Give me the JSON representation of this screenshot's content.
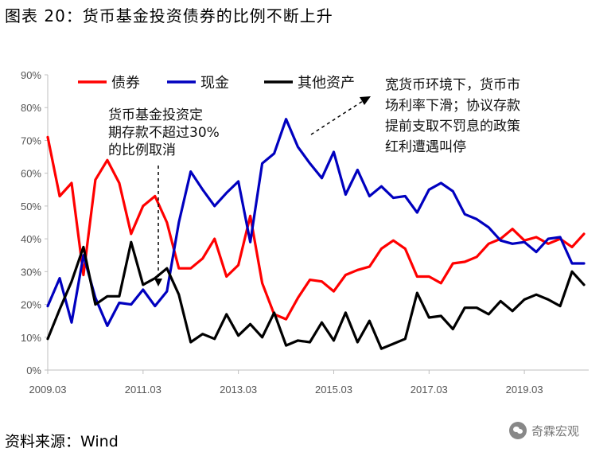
{
  "header": {
    "title": "图表 20：货币基金投资债券的比例不断上升"
  },
  "footer": {
    "source": "资料来源：Wind",
    "watermark": "奇霖宏观"
  },
  "chart_data": {
    "type": "line",
    "title": "",
    "xlabel": "",
    "ylabel": "",
    "ylim": [
      0,
      90
    ],
    "y_ticks": [
      "0%",
      "10%",
      "20%",
      "30%",
      "40%",
      "50%",
      "60%",
      "70%",
      "80%",
      "90%"
    ],
    "x_ticks": [
      "2009.03",
      "2011.03",
      "2013.03",
      "2015.03",
      "2017.03",
      "2019.03"
    ],
    "x_range": [
      2009.0,
      2020.35
    ],
    "x_tick_values": [
      2009.0,
      2011.0,
      2013.0,
      2015.0,
      2017.0,
      2019.0
    ],
    "grid": false,
    "legend_position": "top",
    "series": [
      {
        "name": "债券",
        "color": "#ff0000",
        "x": [
          2009.0,
          2009.25,
          2009.5,
          2009.75,
          2010.0,
          2010.25,
          2010.5,
          2010.75,
          2011.0,
          2011.25,
          2011.5,
          2011.75,
          2012.0,
          2012.25,
          2012.5,
          2012.75,
          2013.0,
          2013.25,
          2013.5,
          2013.75,
          2014.0,
          2014.25,
          2014.5,
          2014.75,
          2015.0,
          2015.25,
          2015.5,
          2015.75,
          2016.0,
          2016.25,
          2016.5,
          2016.75,
          2017.0,
          2017.25,
          2017.5,
          2017.75,
          2018.0,
          2018.25,
          2018.5,
          2018.75,
          2019.0,
          2019.25,
          2019.5,
          2019.75,
          2020.0,
          2020.25
        ],
        "values": [
          71,
          53,
          57,
          29,
          58,
          64,
          57,
          41.5,
          50,
          53,
          45,
          31,
          31,
          34,
          40,
          28.5,
          32,
          47,
          26.5,
          17,
          15.5,
          22,
          27.5,
          27,
          24,
          29,
          30.5,
          31.5,
          37,
          39.5,
          37,
          28.5,
          28.5,
          26.5,
          32.5,
          33,
          34.5,
          38.5,
          40,
          43,
          39.5,
          40.5,
          38.5,
          40,
          37.5,
          41.5
        ]
      },
      {
        "name": "现金",
        "color": "#0000bf",
        "x": [
          2009.0,
          2009.25,
          2009.5,
          2009.75,
          2010.0,
          2010.25,
          2010.5,
          2010.75,
          2011.0,
          2011.25,
          2011.5,
          2011.75,
          2012.0,
          2012.25,
          2012.5,
          2012.75,
          2013.0,
          2013.25,
          2013.5,
          2013.75,
          2014.0,
          2014.25,
          2014.5,
          2014.75,
          2015.0,
          2015.25,
          2015.5,
          2015.75,
          2016.0,
          2016.25,
          2016.5,
          2016.75,
          2017.0,
          2017.25,
          2017.5,
          2017.75,
          2018.0,
          2018.25,
          2018.5,
          2018.75,
          2019.0,
          2019.25,
          2019.5,
          2019.75,
          2020.0,
          2020.25
        ],
        "values": [
          19.5,
          28,
          14.5,
          35,
          22,
          13.5,
          20.5,
          20,
          24.5,
          19.5,
          24,
          45,
          60.5,
          55,
          50,
          54,
          57.5,
          39,
          63,
          66,
          76.5,
          68,
          63,
          58.5,
          66.5,
          53.5,
          61,
          53,
          56,
          52.5,
          53,
          48,
          55,
          57,
          54.5,
          47.5,
          46,
          43.5,
          39.5,
          38.5,
          39,
          36,
          40,
          40.5,
          32.5,
          32.5
        ]
      },
      {
        "name": "其他资产",
        "color": "#000000",
        "x": [
          2009.0,
          2009.25,
          2009.5,
          2009.75,
          2010.0,
          2010.25,
          2010.5,
          2010.75,
          2011.0,
          2011.25,
          2011.5,
          2011.75,
          2012.0,
          2012.25,
          2012.5,
          2012.75,
          2013.0,
          2013.25,
          2013.5,
          2013.75,
          2014.0,
          2014.25,
          2014.5,
          2014.75,
          2015.0,
          2015.25,
          2015.5,
          2015.75,
          2016.0,
          2016.25,
          2016.5,
          2016.75,
          2017.0,
          2017.25,
          2017.5,
          2017.75,
          2018.0,
          2018.25,
          2018.5,
          2018.75,
          2019.0,
          2019.25,
          2019.5,
          2019.75,
          2020.0,
          2020.25
        ],
        "values": [
          9.5,
          18.5,
          27,
          37.5,
          20,
          22.5,
          22.5,
          39,
          26,
          28,
          31,
          23,
          8.5,
          11,
          9.5,
          17,
          10.5,
          14,
          10,
          17.5,
          7.5,
          9,
          8.5,
          14.5,
          9,
          17.5,
          8.5,
          15,
          6.5,
          8,
          9.5,
          23.5,
          16,
          16.5,
          12.5,
          19,
          19,
          17,
          21,
          18,
          21.5,
          23,
          21.5,
          19.5,
          30,
          26
        ]
      }
    ],
    "annotations": [
      {
        "lines": [
          "货币基金投资定",
          "期存款不超过30%",
          "的比例取消"
        ]
      },
      {
        "lines": [
          "宽货币环境下，货币市",
          "场利率下滑；协议存款",
          "提前支取不罚息的政策",
          "红利遭遇叫停"
        ]
      }
    ]
  }
}
